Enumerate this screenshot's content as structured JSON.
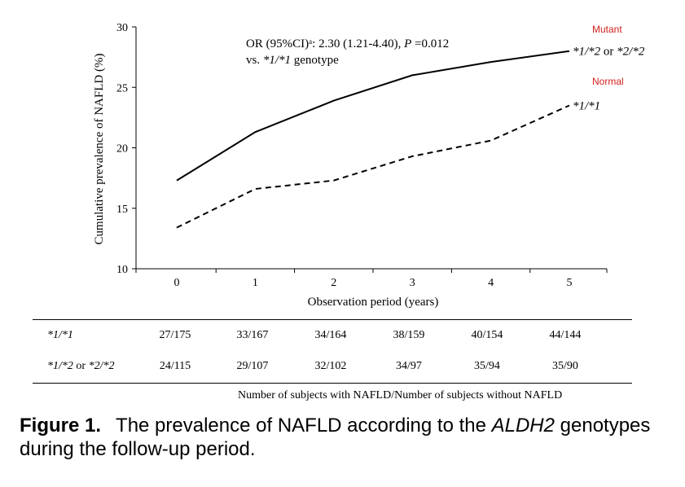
{
  "chart_data": {
    "type": "line",
    "ylabel": "Cumulative prevalence of NAFLD (%)",
    "xlabel": "Observation period (years)",
    "ylim": [
      10,
      30
    ],
    "yticks": [
      10,
      15,
      20,
      25,
      30
    ],
    "x": [
      0,
      1,
      2,
      3,
      4,
      5
    ],
    "series": [
      {
        "name": "*1/*2 or *2/*2",
        "group_label": "Mutant",
        "style": "solid",
        "values": [
          17.3,
          21.3,
          23.9,
          26.0,
          27.1,
          28.0
        ]
      },
      {
        "name": "*1/*1",
        "group_label": "Normal",
        "style": "dashed",
        "values": [
          13.4,
          16.6,
          17.3,
          19.3,
          20.6,
          23.5
        ]
      }
    ],
    "annotation_line1": "OR (95%CI)ᵃ: 2.30 (1.21-4.40), P =0.012",
    "annotation_line2": "vs. *1/*1 genotype",
    "group_label_color": "#d0211d"
  },
  "table": {
    "rows": [
      {
        "label": "*1/*1",
        "values": [
          "27/175",
          "33/167",
          "34/164",
          "38/159",
          "40/154",
          "44/144"
        ]
      },
      {
        "label": "*1/*2 or *2/*2",
        "values": [
          "24/115",
          "29/107",
          "32/102",
          "34/97",
          "35/94",
          "35/90"
        ]
      }
    ],
    "footer": "Number of subjects with NAFLD/Number of subjects without NAFLD"
  },
  "caption": {
    "label": "Figure 1.",
    "text_before": "The prevalence of NAFLD according to the ",
    "gene": "ALDH2",
    "text_after": " genotypes during the follow-up period."
  }
}
